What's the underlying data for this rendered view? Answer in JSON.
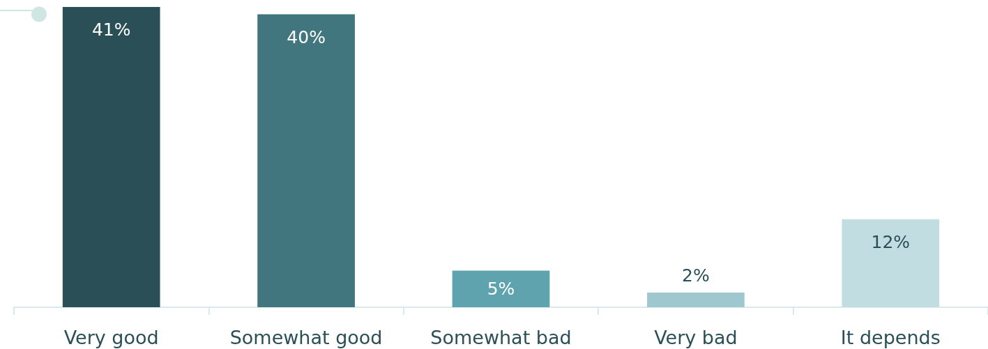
{
  "chart_data": {
    "type": "bar",
    "categories": [
      "Very good",
      "Somewhat good",
      "Somewhat bad",
      "Very bad",
      "It depends"
    ],
    "values": [
      41,
      40,
      5,
      2,
      12
    ],
    "colors": [
      "#2b4f57",
      "#41767f",
      "#5fa3ae",
      "#9fc7cf",
      "#c2dde1"
    ],
    "value_labels": [
      "41%",
      "40%",
      "5%",
      "2%",
      "12%"
    ]
  }
}
